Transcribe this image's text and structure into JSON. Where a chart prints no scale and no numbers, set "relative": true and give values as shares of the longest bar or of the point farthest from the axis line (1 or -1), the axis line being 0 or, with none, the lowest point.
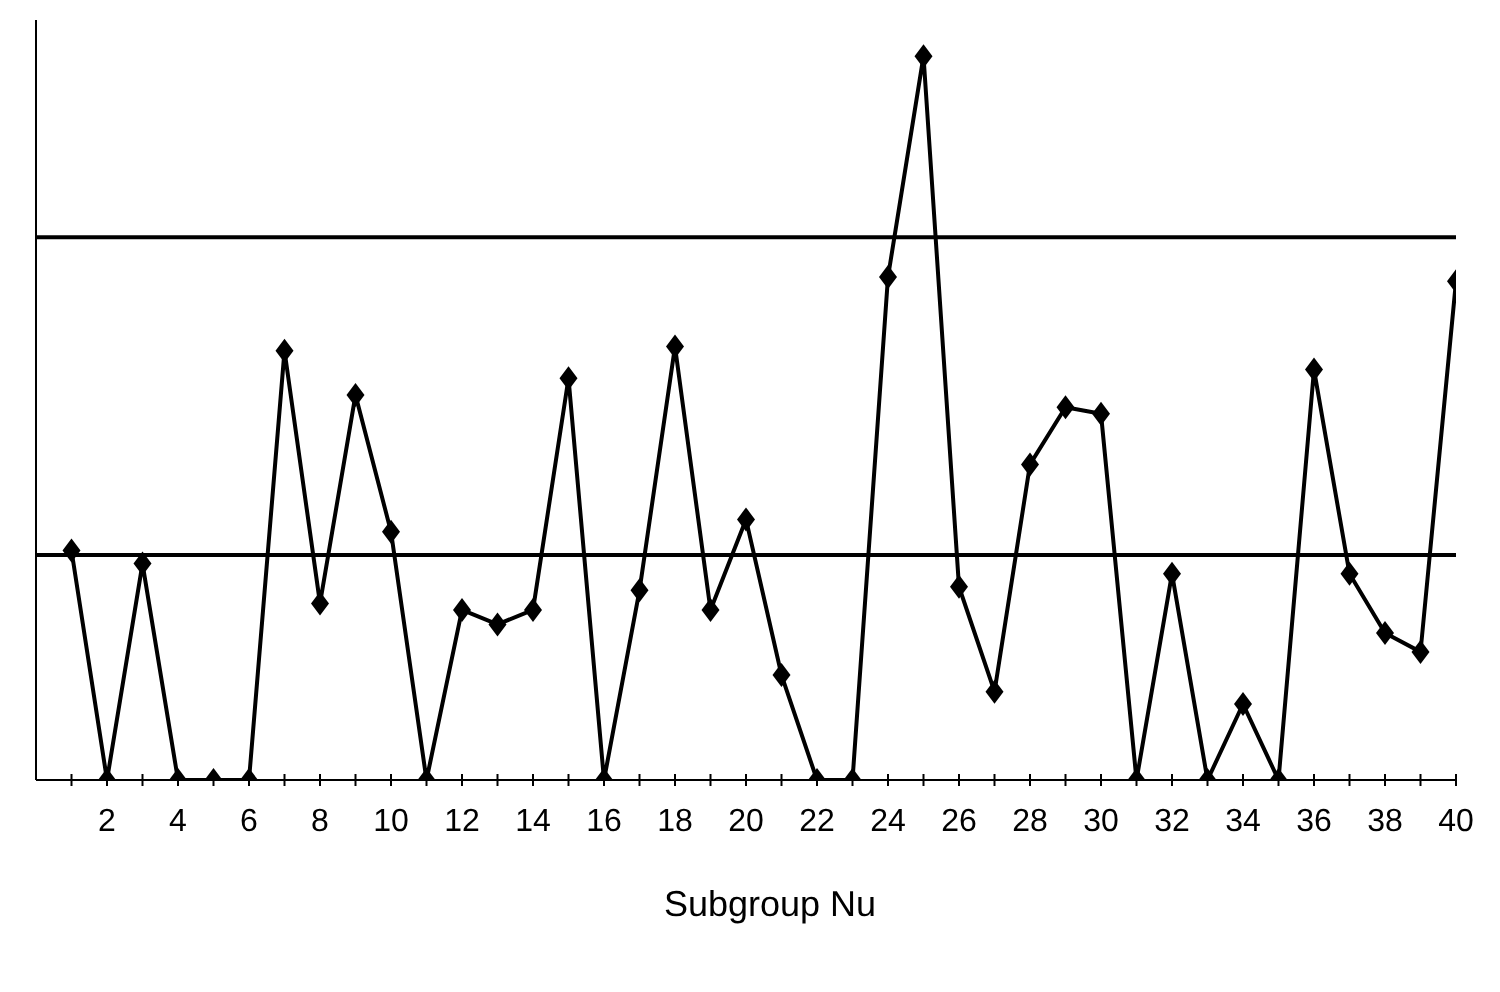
{
  "chart_data": {
    "type": "line",
    "xlabel": "Subgroup Nu",
    "relative": true,
    "marker": "diamond",
    "line_style": "solid",
    "grid": false,
    "legend": false,
    "x": [
      1,
      2,
      3,
      4,
      5,
      6,
      7,
      8,
      9,
      10,
      11,
      12,
      13,
      14,
      15,
      16,
      17,
      18,
      19,
      20,
      21,
      22,
      23,
      24,
      25,
      26,
      27,
      28,
      29,
      30,
      31,
      32,
      33,
      34,
      35,
      36,
      37,
      38,
      39,
      40
    ],
    "xlim": [
      0,
      40
    ],
    "xticks": [
      {
        "value": 1,
        "label": null
      },
      2,
      {
        "value": 3,
        "label": null
      },
      4,
      {
        "value": 5,
        "label": null
      },
      6,
      {
        "value": 7,
        "label": null
      },
      8,
      {
        "value": 9,
        "label": null
      },
      10,
      {
        "value": 11,
        "label": null
      },
      12,
      {
        "value": 13,
        "label": null
      },
      14,
      {
        "value": 15,
        "label": null
      },
      16,
      {
        "value": 17,
        "label": null
      },
      18,
      {
        "value": 19,
        "label": null
      },
      20,
      {
        "value": 21,
        "label": null
      },
      22,
      {
        "value": 23,
        "label": null
      },
      24,
      {
        "value": 25,
        "label": null
      },
      26,
      {
        "value": 27,
        "label": null
      },
      28,
      {
        "value": 29,
        "label": null
      },
      30,
      {
        "value": 31,
        "label": null
      },
      32,
      {
        "value": 33,
        "label": null
      },
      34,
      {
        "value": 35,
        "label": null
      },
      36,
      {
        "value": 37,
        "label": null
      },
      38,
      {
        "value": 39,
        "label": null
      },
      40
    ],
    "series": [
      {
        "color": "#000000",
        "values": [
          0.317,
          0,
          0.299,
          0,
          0,
          0,
          0.593,
          0.244,
          0.532,
          0.343,
          0,
          0.235,
          0.215,
          0.235,
          0.555,
          0,
          0.262,
          0.599,
          0.235,
          0.36,
          0.145,
          0,
          0,
          0.695,
          1,
          0.267,
          0.122,
          0.436,
          0.515,
          0.506,
          0,
          0.285,
          0,
          0.105,
          0,
          0.567,
          0.285,
          0.203,
          0.177,
          0.689
        ]
      }
    ],
    "ref_lines": [
      {
        "axis": "y",
        "value": 0.75,
        "color": "#000000"
      },
      {
        "axis": "y",
        "value": 0.311,
        "color": "#000000"
      }
    ]
  }
}
